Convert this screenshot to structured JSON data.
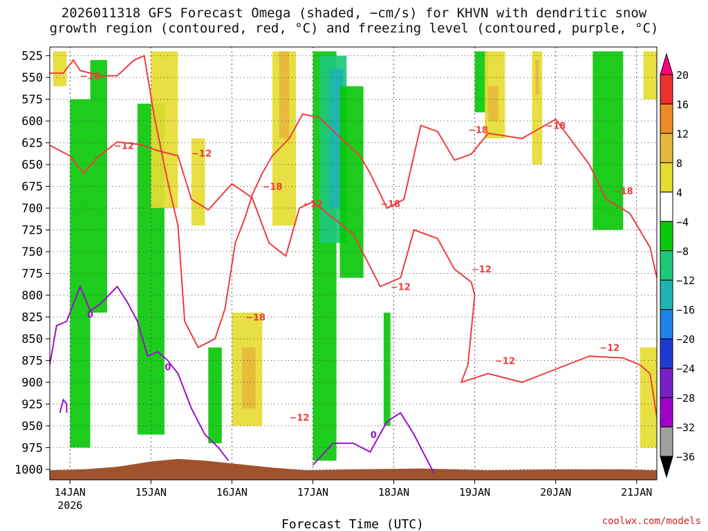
{
  "title_line1": "2026011318 GFS Forecast Omega (shaded, −cm/s) for KHVN with dendritic snow",
  "title_line2": "growth region (contoured, red, °C) and freezing level (contoured, purple, °C)",
  "credit": "coolwx.com/models",
  "chart_data": {
    "type": "heatmap",
    "title": "2026011318 GFS Forecast Omega (shaded, −cm/s) for KHVN with dendritic snow growth region (contoured, red, °C) and freezing level (contoured, purple, °C)",
    "xlabel": "Forecast Time (UTC)",
    "ylabel": "",
    "x_ticks": [
      {
        "label": "14JAN",
        "sublabel": "2026",
        "hour": 6
      },
      {
        "label": "15JAN",
        "sublabel": "",
        "hour": 30
      },
      {
        "label": "16JAN",
        "sublabel": "",
        "hour": 54
      },
      {
        "label": "17JAN",
        "sublabel": "",
        "hour": 78
      },
      {
        "label": "18JAN",
        "sublabel": "",
        "hour": 102
      },
      {
        "label": "19JAN",
        "sublabel": "",
        "hour": 126
      },
      {
        "label": "20JAN",
        "sublabel": "",
        "hour": 150
      },
      {
        "label": "21JAN",
        "sublabel": "",
        "hour": 174
      }
    ],
    "x_range_hours": [
      0,
      180
    ],
    "y_ticks": [
      525,
      550,
      575,
      600,
      625,
      650,
      675,
      700,
      725,
      750,
      775,
      800,
      825,
      850,
      875,
      900,
      925,
      950,
      975,
      1000
    ],
    "y_range_hpa": [
      515,
      1012
    ],
    "grid": true,
    "colorbar": {
      "labels": [
        "20",
        "16",
        "12",
        "8",
        "4",
        "−4",
        "−8",
        "−12",
        "−16",
        "−20",
        "−24",
        "−28",
        "−32",
        "−36"
      ],
      "colors": [
        "#ff0080",
        "#ee3030",
        "#ee8c28",
        "#e6b83c",
        "#e6dc32",
        "#ffffff",
        "#0ac80a",
        "#1ec87a",
        "#1eb4b4",
        "#1e82e6",
        "#1e3cd2",
        "#7820c8",
        "#a000c8",
        "#a0a0a0",
        "#000000"
      ]
    },
    "omega_regions": [
      {
        "color": "#0ac80a",
        "hour": [
          6,
          12
        ],
        "p": [
          575,
          975
        ]
      },
      {
        "color": "#0ac80a",
        "hour": [
          12,
          17
        ],
        "p": [
          530,
          820
        ]
      },
      {
        "color": "#0ac80a",
        "hour": [
          26,
          34
        ],
        "p": [
          580,
          960
        ]
      },
      {
        "color": "#0ac80a",
        "hour": [
          47,
          51
        ],
        "p": [
          860,
          970
        ]
      },
      {
        "color": "#0ac80a",
        "hour": [
          78,
          85
        ],
        "p": [
          520,
          990
        ]
      },
      {
        "color": "#1ec87a",
        "hour": [
          80,
          88
        ],
        "p": [
          525,
          740
        ]
      },
      {
        "color": "#1eb4b4",
        "hour": [
          83,
          87
        ],
        "p": [
          540,
          700
        ]
      },
      {
        "color": "#0ac80a",
        "hour": [
          86,
          93
        ],
        "p": [
          560,
          780
        ]
      },
      {
        "color": "#0ac80a",
        "hour": [
          99,
          101
        ],
        "p": [
          820,
          950
        ]
      },
      {
        "color": "#0ac80a",
        "hour": [
          126,
          130
        ],
        "p": [
          520,
          590
        ]
      },
      {
        "color": "#0ac80a",
        "hour": [
          161,
          170
        ],
        "p": [
          520,
          725
        ]
      },
      {
        "color": "#e6dc32",
        "hour": [
          1,
          5
        ],
        "p": [
          520,
          560
        ]
      },
      {
        "color": "#e6dc32",
        "hour": [
          30,
          38
        ],
        "p": [
          520,
          700
        ]
      },
      {
        "color": "#e6dc32",
        "hour": [
          42,
          46
        ],
        "p": [
          620,
          720
        ]
      },
      {
        "color": "#e6dc32",
        "hour": [
          54,
          63
        ],
        "p": [
          820,
          950
        ]
      },
      {
        "color": "#e6b83c",
        "hour": [
          57,
          61
        ],
        "p": [
          860,
          930
        ]
      },
      {
        "color": "#e6dc32",
        "hour": [
          66,
          73
        ],
        "p": [
          520,
          720
        ]
      },
      {
        "color": "#e6b83c",
        "hour": [
          68,
          71
        ],
        "p": [
          520,
          620
        ]
      },
      {
        "color": "#e6dc32",
        "hour": [
          129,
          135
        ],
        "p": [
          520,
          620
        ]
      },
      {
        "color": "#e6b83c",
        "hour": [
          130,
          133
        ],
        "p": [
          560,
          600
        ]
      },
      {
        "color": "#e6dc32",
        "hour": [
          143,
          146
        ],
        "p": [
          520,
          650
        ]
      },
      {
        "color": "#e6b83c",
        "hour": [
          144,
          145
        ],
        "p": [
          530,
          570
        ]
      },
      {
        "color": "#e6dc32",
        "hour": [
          176,
          180
        ],
        "p": [
          520,
          575
        ]
      },
      {
        "color": "#e6dc32",
        "hour": [
          175,
          180
        ],
        "p": [
          860,
          975
        ]
      }
    ],
    "dgz_contours": [
      {
        "label": "−18",
        "points": [
          [
            0,
            545
          ],
          [
            4,
            545
          ],
          [
            7,
            530
          ],
          [
            9,
            542
          ],
          [
            15,
            548
          ],
          [
            20,
            548
          ],
          [
            25,
            530
          ],
          [
            28,
            525
          ],
          [
            31,
            595
          ],
          [
            35,
            670
          ],
          [
            38,
            720
          ],
          [
            40,
            830
          ],
          [
            44,
            860
          ],
          [
            49,
            850
          ],
          [
            52,
            815
          ],
          [
            55,
            740
          ],
          [
            58,
            710
          ],
          [
            60,
            685
          ],
          [
            63,
            660
          ],
          [
            66,
            640
          ],
          [
            71,
            620
          ],
          [
            75,
            592
          ],
          [
            80,
            596
          ],
          [
            85,
            615
          ],
          [
            92,
            640
          ],
          [
            95,
            660
          ],
          [
            100,
            700
          ],
          [
            105,
            690
          ],
          [
            110,
            605
          ],
          [
            115,
            612
          ],
          [
            120,
            645
          ],
          [
            125,
            638
          ],
          [
            130,
            614
          ],
          [
            140,
            620
          ],
          [
            150,
            598
          ],
          [
            160,
            650
          ],
          [
            165,
            690
          ],
          [
            172,
            706
          ],
          [
            178,
            745
          ],
          [
            180,
            780
          ]
        ],
        "label_at": [
          [
            12,
            548
          ],
          [
            61,
            825
          ],
          [
            66,
            675
          ],
          [
            101,
            695
          ],
          [
            127,
            610
          ],
          [
            150,
            605
          ],
          [
            170,
            680
          ]
        ]
      },
      {
        "label": "−12",
        "points": [
          [
            0,
            628
          ],
          [
            6,
            640
          ],
          [
            10,
            660
          ],
          [
            14,
            642
          ],
          [
            20,
            624
          ],
          [
            27,
            627
          ],
          [
            32,
            634
          ],
          [
            38,
            640
          ],
          [
            42,
            690
          ],
          [
            47,
            702
          ],
          [
            54,
            672
          ],
          [
            60,
            688
          ],
          [
            65,
            740
          ],
          [
            70,
            755
          ],
          [
            74,
            700
          ],
          [
            78,
            693
          ],
          [
            82,
            705
          ],
          [
            90,
            730
          ],
          [
            98,
            790
          ],
          [
            104,
            780
          ],
          [
            108,
            725
          ],
          [
            115,
            735
          ],
          [
            120,
            770
          ],
          [
            125,
            785
          ],
          [
            126,
            800
          ],
          [
            124,
            880
          ],
          [
            122,
            900
          ],
          [
            130,
            890
          ],
          [
            140,
            900
          ],
          [
            150,
            885
          ],
          [
            160,
            870
          ],
          [
            170,
            872
          ],
          [
            175,
            880
          ],
          [
            178,
            890
          ],
          [
            180,
            940
          ]
        ],
        "label_at": [
          [
            22,
            628
          ],
          [
            45,
            637
          ],
          [
            78,
            695
          ],
          [
            104,
            790
          ],
          [
            128,
            770
          ],
          [
            135,
            875
          ],
          [
            166,
            860
          ],
          [
            74,
            940
          ]
        ]
      }
    ],
    "freezing_contours": [
      {
        "label": "0",
        "points": [
          [
            0,
            880
          ],
          [
            2,
            835
          ],
          [
            5,
            830
          ],
          [
            9,
            790
          ],
          [
            12,
            818
          ],
          [
            15,
            810
          ],
          [
            20,
            790
          ],
          [
            23,
            808
          ],
          [
            26,
            830
          ],
          [
            29,
            870
          ],
          [
            32,
            865
          ],
          [
            35,
            875
          ],
          [
            38,
            890
          ],
          [
            42,
            930
          ],
          [
            46,
            960
          ],
          [
            50,
            975
          ],
          [
            53,
            990
          ]
        ],
        "label_at": [
          [
            12,
            822
          ],
          [
            35,
            882
          ]
        ]
      },
      {
        "label": "0",
        "points": [
          [
            3,
            935
          ],
          [
            4,
            920
          ],
          [
            5,
            925
          ],
          [
            5,
            935
          ]
        ],
        "label_at": []
      },
      {
        "label": "0",
        "points": [
          [
            78,
            995
          ],
          [
            84,
            970
          ],
          [
            90,
            970
          ],
          [
            95,
            980
          ],
          [
            100,
            945
          ],
          [
            104,
            935
          ],
          [
            108,
            960
          ],
          [
            112,
            990
          ],
          [
            114,
            1005
          ]
        ],
        "label_at": [
          [
            96,
            960
          ]
        ]
      }
    ],
    "terrain_color": "#a0522d"
  }
}
